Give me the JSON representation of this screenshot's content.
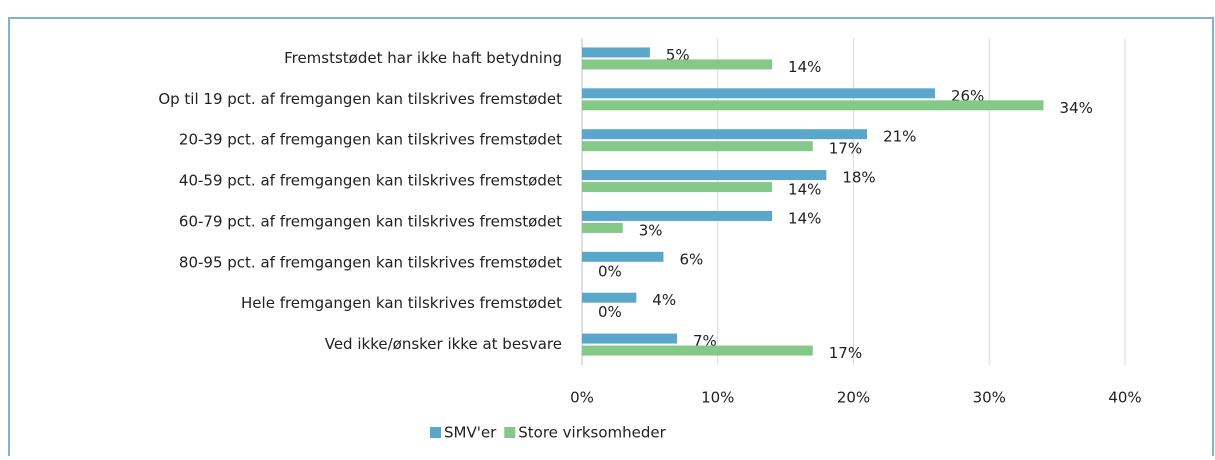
{
  "chart_data": {
    "type": "barh",
    "categories": [
      "Fremststødet har ikke haft betydning",
      "Op til 19 pct. af fremgangen kan tilskrives fremstødet",
      "20-39 pct. af fremgangen kan tilskrives fremstødet",
      "40-59 pct. af fremgangen kan tilskrives fremstødet",
      "60-79 pct. af fremgangen kan tilskrives fremstødet",
      "80-95 pct. af fremgangen kan tilskrives fremstødet",
      "Hele fremgangen kan tilskrives fremstødet",
      "Ved ikke/ønsker ikke at besvare"
    ],
    "series": [
      {
        "name": "SMV'er",
        "color": "#5aa7cb",
        "values": [
          5,
          26,
          21,
          18,
          14,
          6,
          4,
          7
        ],
        "value_labels": [
          "5%",
          "26%",
          "21%",
          "18%",
          "14%",
          "6%",
          "4%",
          "7%"
        ]
      },
      {
        "name": "Store virksomheder",
        "color": "#85c988",
        "values": [
          14,
          34,
          17,
          14,
          3,
          0,
          0,
          17
        ],
        "value_labels": [
          "14%",
          "34%",
          "17%",
          "14%",
          "3%",
          "0%",
          "0%",
          "17%"
        ]
      }
    ],
    "xlim": [
      0,
      40
    ],
    "xticks": [
      {
        "value": 0,
        "label": "0%"
      },
      {
        "value": 10,
        "label": "10%"
      },
      {
        "value": 20,
        "label": "20%"
      },
      {
        "value": 30,
        "label": "30%"
      },
      {
        "value": 40,
        "label": "40%"
      }
    ],
    "grid": true,
    "legend": "bottom"
  }
}
